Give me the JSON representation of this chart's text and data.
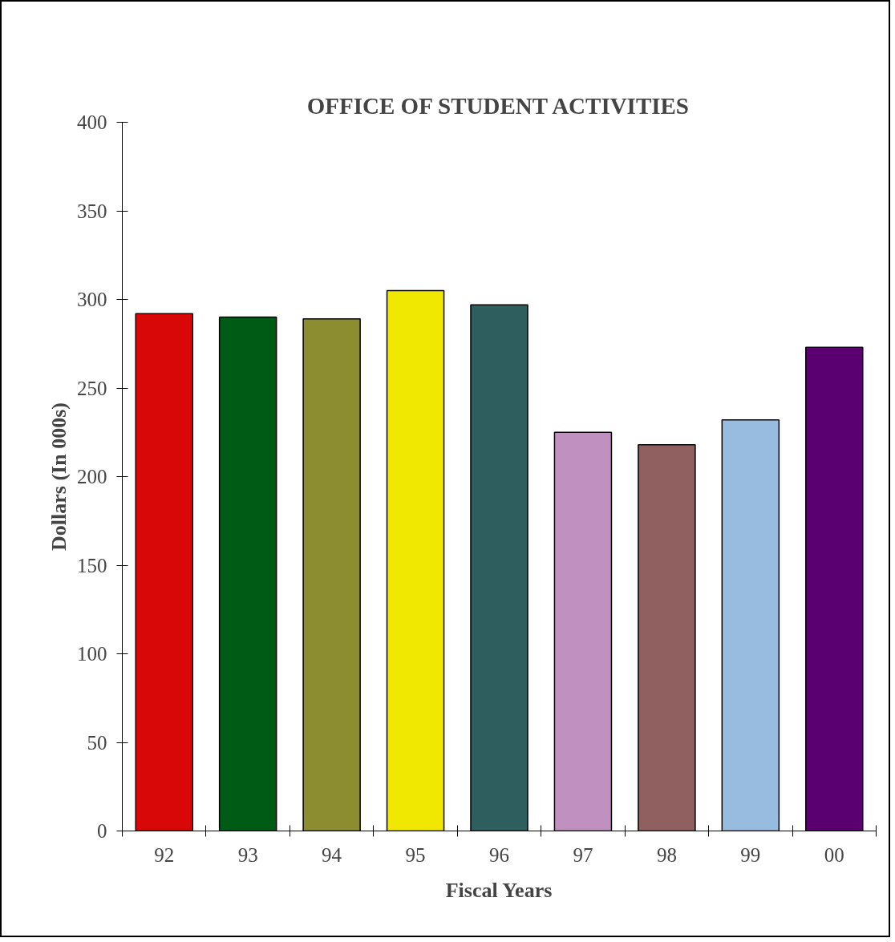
{
  "chart_data": {
    "type": "bar",
    "title": "OFFICE OF STUDENT ACTIVITIES",
    "xlabel": "Fiscal Years",
    "ylabel": "Dollars (In 000s)",
    "categories": [
      "92",
      "93",
      "94",
      "95",
      "96",
      "97",
      "98",
      "99",
      "00"
    ],
    "values": [
      292,
      290,
      289,
      305,
      297,
      225,
      218,
      232,
      273
    ],
    "colors": [
      "#d80808",
      "#005c14",
      "#8c8c30",
      "#f0e800",
      "#2e5e5e",
      "#c090c0",
      "#906060",
      "#98bce0",
      "#5a0070"
    ],
    "ylim": [
      0,
      400
    ],
    "yticks": [
      0,
      50,
      100,
      150,
      200,
      250,
      300,
      350,
      400
    ],
    "grid": false
  }
}
